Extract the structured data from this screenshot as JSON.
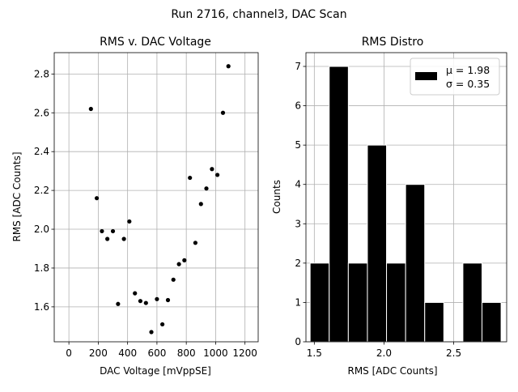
{
  "figure": {
    "suptitle": "Run 2716, channel3, DAC Scan"
  },
  "chart_data": [
    {
      "type": "scatter",
      "title": "RMS v. DAC Voltage",
      "xlabel": "DAC Voltage [mVppSE]",
      "ylabel": "RMS [ADC Counts]",
      "xlim": [
        -100,
        1290
      ],
      "ylim": [
        1.42,
        2.91
      ],
      "xticks": [
        0,
        200,
        400,
        600,
        800,
        1000,
        1200
      ],
      "yticks": [
        1.6,
        1.8,
        2.0,
        2.2,
        2.4,
        2.6,
        2.8
      ],
      "ytick_labels": [
        "1.6",
        "1.8",
        "2.0",
        "2.2",
        "2.4",
        "2.6",
        "2.8"
      ],
      "grid": true,
      "color": "#000000",
      "points": [
        {
          "x": 150,
          "y": 2.62
        },
        {
          "x": 190,
          "y": 2.16
        },
        {
          "x": 225,
          "y": 1.99
        },
        {
          "x": 262,
          "y": 1.95
        },
        {
          "x": 300,
          "y": 1.99
        },
        {
          "x": 335,
          "y": 1.615
        },
        {
          "x": 375,
          "y": 1.95
        },
        {
          "x": 412,
          "y": 2.04
        },
        {
          "x": 450,
          "y": 1.67
        },
        {
          "x": 487,
          "y": 1.63
        },
        {
          "x": 525,
          "y": 1.62
        },
        {
          "x": 562,
          "y": 1.47
        },
        {
          "x": 600,
          "y": 1.64
        },
        {
          "x": 637,
          "y": 1.51
        },
        {
          "x": 675,
          "y": 1.635
        },
        {
          "x": 712,
          "y": 1.74
        },
        {
          "x": 750,
          "y": 1.82
        },
        {
          "x": 787,
          "y": 1.84
        },
        {
          "x": 825,
          "y": 2.265
        },
        {
          "x": 862,
          "y": 1.93
        },
        {
          "x": 900,
          "y": 2.13
        },
        {
          "x": 937,
          "y": 2.21
        },
        {
          "x": 975,
          "y": 2.31
        },
        {
          "x": 1012,
          "y": 2.28
        },
        {
          "x": 1050,
          "y": 2.6
        },
        {
          "x": 1087,
          "y": 2.84
        }
      ]
    },
    {
      "type": "bar",
      "subtype": "histogram",
      "title": "RMS Distro",
      "xlabel": "RMS [ADC Counts]",
      "ylabel": "Counts",
      "xlim": [
        1.44,
        2.88
      ],
      "ylim": [
        0,
        7.35
      ],
      "xticks": [
        1.5,
        2.0,
        2.5
      ],
      "xtick_labels": [
        "1.5",
        "2.0",
        "2.5"
      ],
      "yticks": [
        0,
        1,
        2,
        3,
        4,
        5,
        6,
        7
      ],
      "grid": true,
      "bar_color": "#000000",
      "edge_color": "#ffffff",
      "bin_edges": [
        1.47,
        1.607,
        1.744,
        1.881,
        2.018,
        2.155,
        2.292,
        2.429,
        2.566,
        2.703,
        2.84
      ],
      "counts": [
        2,
        7,
        2,
        5,
        2,
        4,
        1,
        0,
        2,
        1
      ],
      "legend": {
        "position": "upper right",
        "line1": "μ = 1.98",
        "line2": "σ = 0.35"
      }
    }
  ]
}
